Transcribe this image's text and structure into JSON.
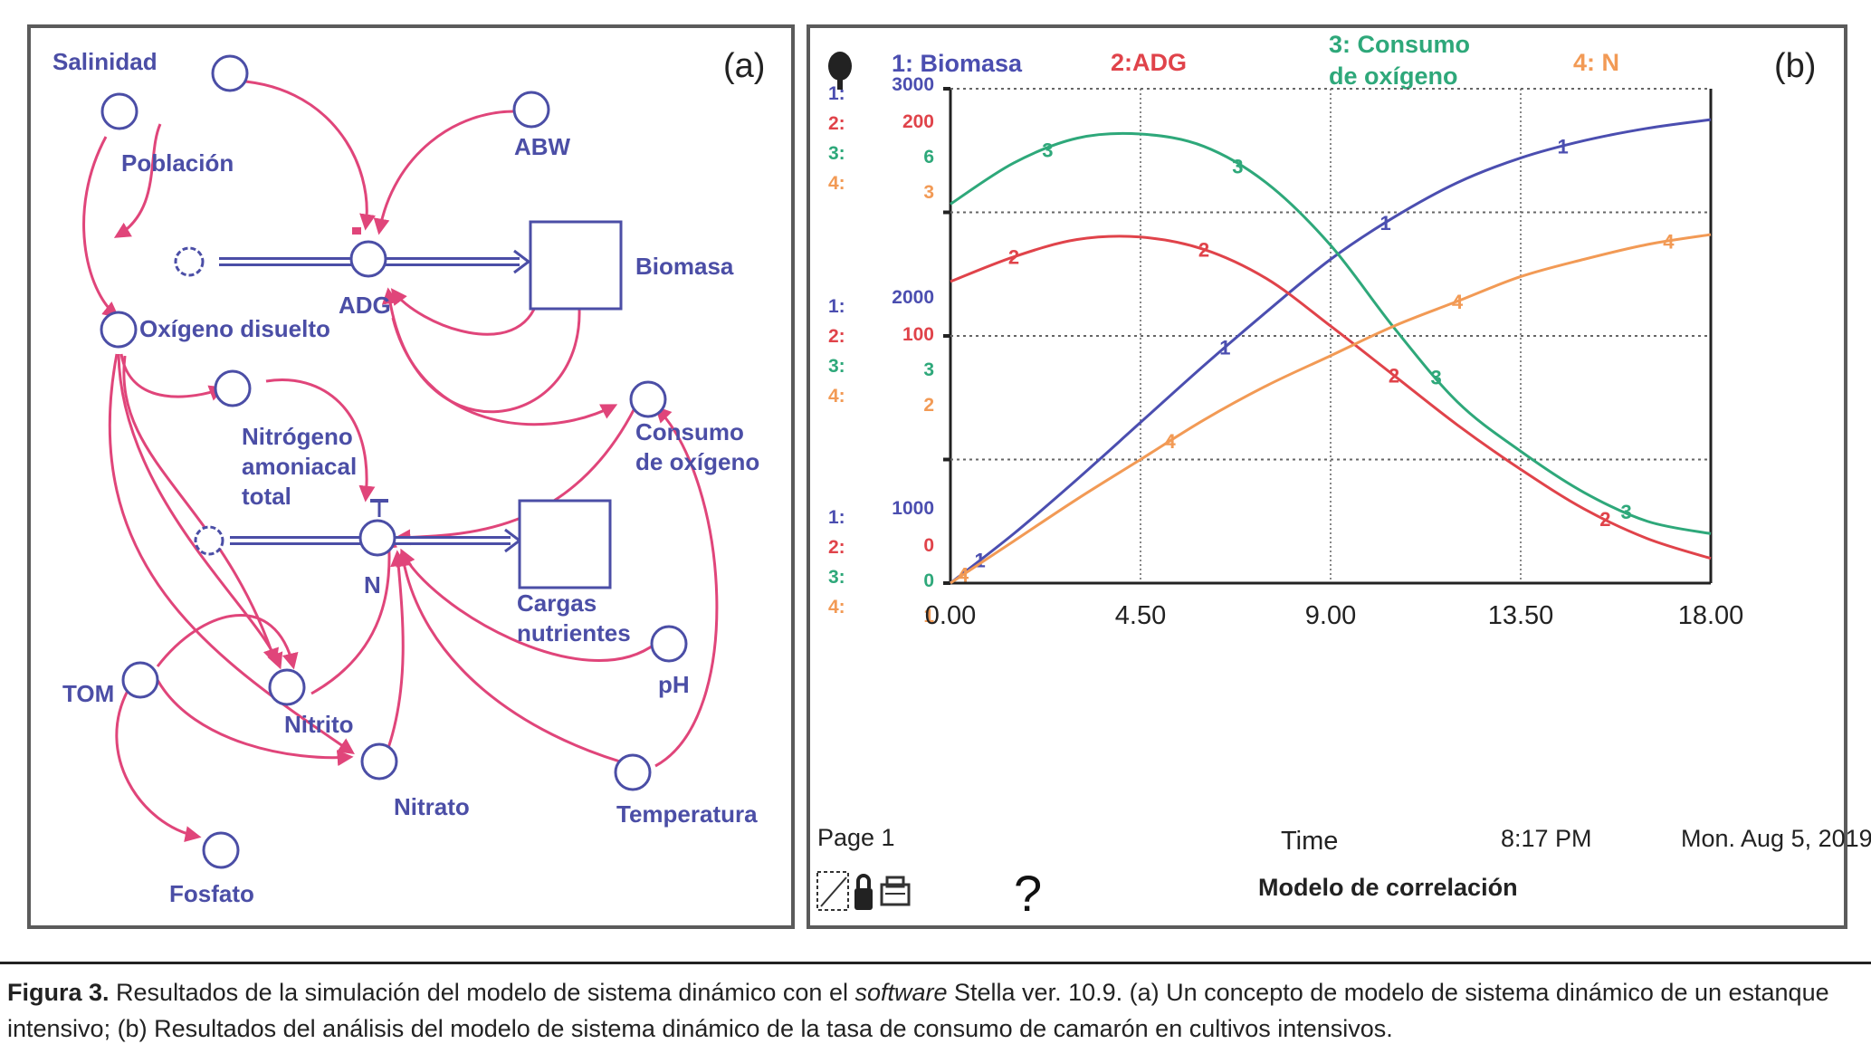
{
  "panel_a": {
    "tag": "(a)",
    "nodes": {
      "salinidad": "Salinidad",
      "poblacion": "Población",
      "abw": "ABW",
      "biomasa": "Biomasa",
      "adg": "ADG",
      "oxigeno_disuelto": "Oxígeno disuelto",
      "nitrogeno_1": "Nitrógeno",
      "nitrogeno_2": "amoniacal",
      "nitrogeno_3": "total",
      "consumo_1": "Consumo",
      "consumo_2": "de oxígeno",
      "n": "N",
      "cargas_1": "Cargas",
      "cargas_2": "nutrientes",
      "ph": "pH",
      "tom": "TOM",
      "nitrito": "Nitrito",
      "nitrato": "Nitrato",
      "temperatura": "Temperatura",
      "fosfato": "Fosfato"
    }
  },
  "panel_b": {
    "tag": "(b)",
    "legend": {
      "s1": "1: Biomasa",
      "s2": "2:ADG",
      "s3a": "3: Consumo",
      "s3b": "de oxígeno",
      "s4": "4: N"
    },
    "scale_prefix": [
      "1:",
      "2:",
      "3:",
      "4:"
    ],
    "scales_top": [
      "3000",
      "200",
      "6",
      "3"
    ],
    "scales_mid": [
      "2000",
      "100",
      "3",
      "2"
    ],
    "scales_bottom": [
      "1000",
      "0",
      "0",
      "1"
    ],
    "xticks": [
      "0.00",
      "4.50",
      "9.00",
      "13.50",
      "18.00"
    ],
    "xlabel": "Time",
    "page": "Page 1",
    "timestamp": "8:17 PM",
    "date": "Mon. Aug 5, 2019",
    "help": "?",
    "model_title": "Modelo de correlación"
  },
  "colors": {
    "s1": "#4b4eb0",
    "s2": "#e0434a",
    "s3": "#2ea87a",
    "s4": "#f29a55",
    "diagram_node": "#4b4ea6",
    "diagram_link": "#e0457a"
  },
  "chart_data": {
    "type": "line",
    "x": [
      0,
      1.5,
      3,
      4.5,
      6,
      7.5,
      9,
      10.5,
      12,
      13.5,
      15,
      16.5,
      18
    ],
    "xlim": [
      0,
      18
    ],
    "xlabel": "Time",
    "series": [
      {
        "name": "1: Biomasa",
        "ylim": [
          1000,
          3000
        ],
        "values": [
          1000,
          1200,
          1420,
          1650,
          1880,
          2100,
          2310,
          2480,
          2620,
          2720,
          2790,
          2840,
          2875
        ]
      },
      {
        "name": "2:ADG",
        "ylim": [
          0,
          200
        ],
        "values": [
          122,
          132,
          139,
          140,
          135,
          123,
          104,
          84,
          64,
          46,
          30,
          18,
          10
        ]
      },
      {
        "name": "3: Consumo de oxígeno",
        "ylim": [
          0,
          6
        ],
        "values": [
          4.6,
          5.1,
          5.4,
          5.45,
          5.3,
          4.85,
          4.1,
          3.1,
          2.2,
          1.6,
          1.1,
          0.75,
          0.6
        ]
      },
      {
        "name": "4: N",
        "ylim": [
          1,
          3
        ],
        "values": [
          1.0,
          1.17,
          1.34,
          1.5,
          1.66,
          1.8,
          1.92,
          2.04,
          2.14,
          2.24,
          2.31,
          2.37,
          2.41
        ]
      }
    ]
  },
  "caption": {
    "fig": "Figura 3.",
    "t1": " Resultados de la simulación del modelo de sistema dinámico con el ",
    "em": "software",
    "t2": " Stella ver. 10.9. (a) Un concepto de modelo de sistema dinámico de un estanque intensivo; (b) Resultados del análisis del modelo de sistema dinámico de la tasa de consumo de camarón en cultivos intensivos."
  }
}
